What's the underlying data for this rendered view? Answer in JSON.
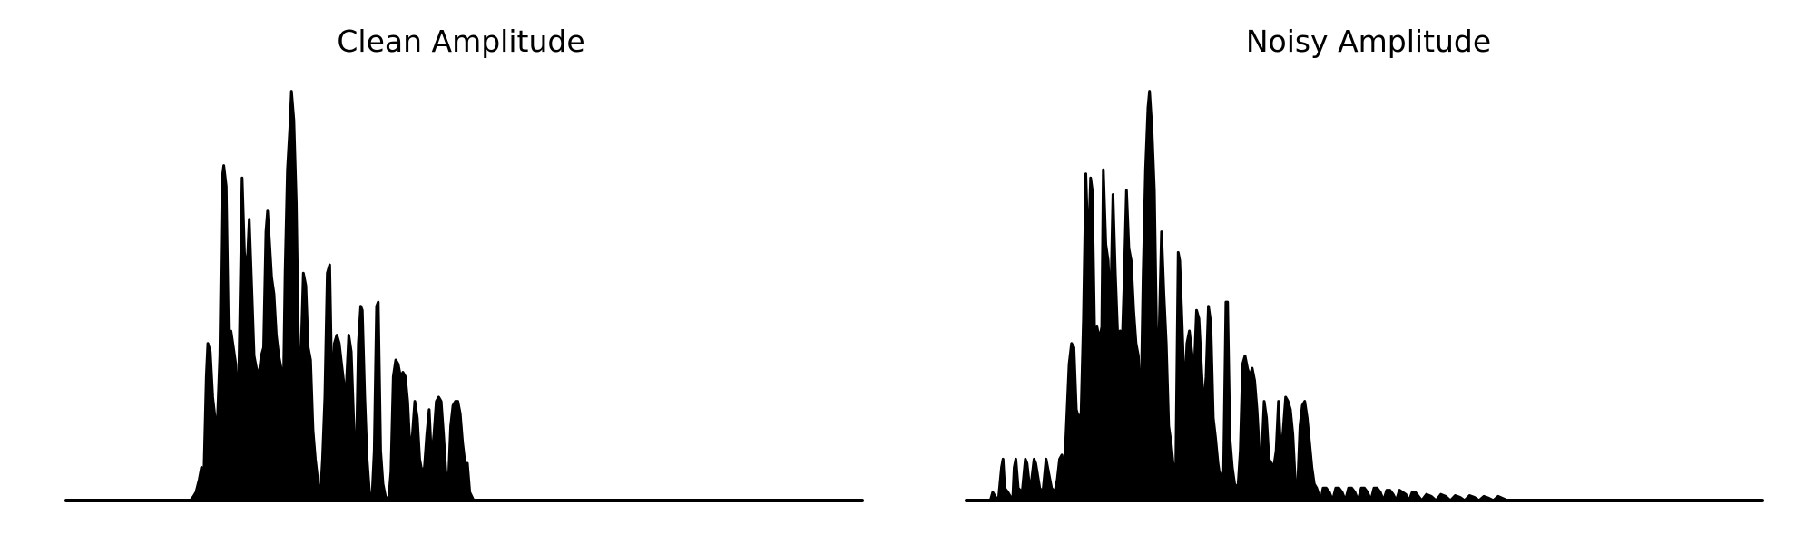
{
  "chart_data": [
    {
      "type": "area",
      "title": "Clean Amplitude",
      "xlabel": "",
      "ylabel": "",
      "axes_visible": false,
      "grid": false,
      "xlim": [
        0,
        1000
      ],
      "ylim": [
        0,
        1.0
      ],
      "color": "#000000",
      "points": [
        [
          0,
          0
        ],
        [
          156,
          0
        ],
        [
          160,
          0.01
        ],
        [
          163,
          0.02
        ],
        [
          167,
          0.05
        ],
        [
          170,
          0.08
        ],
        [
          173,
          0.06
        ],
        [
          176,
          0.3
        ],
        [
          178,
          0.38
        ],
        [
          181,
          0.36
        ],
        [
          184,
          0.25
        ],
        [
          187,
          0.2
        ],
        [
          190,
          0.19
        ],
        [
          193,
          0.35
        ],
        [
          196,
          0.78
        ],
        [
          198,
          0.81
        ],
        [
          201,
          0.76
        ],
        [
          204,
          0.4
        ],
        [
          207,
          0.41
        ],
        [
          210,
          0.37
        ],
        [
          213,
          0.33
        ],
        [
          216,
          0.2
        ],
        [
          219,
          0.55
        ],
        [
          221,
          0.78
        ],
        [
          224,
          0.6
        ],
        [
          227,
          0.55
        ],
        [
          230,
          0.68
        ],
        [
          233,
          0.52
        ],
        [
          236,
          0.35
        ],
        [
          239,
          0.32
        ],
        [
          242,
          0.3
        ],
        [
          245,
          0.35
        ],
        [
          248,
          0.37
        ],
        [
          251,
          0.65
        ],
        [
          253,
          0.7
        ],
        [
          255,
          0.64
        ],
        [
          258,
          0.54
        ],
        [
          261,
          0.5
        ],
        [
          264,
          0.4
        ],
        [
          267,
          0.35
        ],
        [
          270,
          0.32
        ],
        [
          273,
          0.28
        ],
        [
          275,
          0.55
        ],
        [
          278,
          0.8
        ],
        [
          281,
          0.9
        ],
        [
          283,
          0.99
        ],
        [
          286,
          0.92
        ],
        [
          289,
          0.72
        ],
        [
          292,
          0.35
        ],
        [
          295,
          0.35
        ],
        [
          298,
          0.55
        ],
        [
          301,
          0.52
        ],
        [
          304,
          0.37
        ],
        [
          307,
          0.34
        ],
        [
          310,
          0.17
        ],
        [
          313,
          0.1
        ],
        [
          316,
          0.05
        ],
        [
          319,
          0.0
        ],
        [
          322,
          0.1
        ],
        [
          325,
          0.25
        ],
        [
          328,
          0.55
        ],
        [
          331,
          0.57
        ],
        [
          334,
          0.25
        ],
        [
          337,
          0.38
        ],
        [
          340,
          0.4
        ],
        [
          343,
          0.38
        ],
        [
          346,
          0.33
        ],
        [
          349,
          0.28
        ],
        [
          352,
          0.28
        ],
        [
          355,
          0.4
        ],
        [
          358,
          0.36
        ],
        [
          361,
          0.2
        ],
        [
          364,
          0.05
        ],
        [
          367,
          0.38
        ],
        [
          370,
          0.47
        ],
        [
          372,
          0.46
        ],
        [
          375,
          0.25
        ],
        [
          378,
          0.1
        ],
        [
          381,
          0.02
        ],
        [
          384,
          0.0
        ],
        [
          387,
          0.12
        ],
        [
          390,
          0.47
        ],
        [
          392,
          0.48
        ],
        [
          395,
          0.12
        ],
        [
          398,
          0.04
        ],
        [
          401,
          0.01
        ],
        [
          405,
          0.0
        ],
        [
          408,
          0.07
        ],
        [
          411,
          0.3
        ],
        [
          414,
          0.34
        ],
        [
          417,
          0.33
        ],
        [
          420,
          0.3
        ],
        [
          423,
          0.31
        ],
        [
          426,
          0.3
        ],
        [
          429,
          0.24
        ],
        [
          432,
          0.12
        ],
        [
          435,
          0.16
        ],
        [
          438,
          0.24
        ],
        [
          441,
          0.2
        ],
        [
          444,
          0.1
        ],
        [
          447,
          0.07
        ],
        [
          450,
          0.08
        ],
        [
          453,
          0.16
        ],
        [
          456,
          0.22
        ],
        [
          459,
          0.1
        ],
        [
          462,
          0.16
        ],
        [
          465,
          0.24
        ],
        [
          468,
          0.25
        ],
        [
          471,
          0.24
        ],
        [
          474,
          0.16
        ],
        [
          477,
          0.07
        ],
        [
          480,
          0.04
        ],
        [
          483,
          0.18
        ],
        [
          486,
          0.23
        ],
        [
          489,
          0.24
        ],
        [
          492,
          0.24
        ],
        [
          495,
          0.21
        ],
        [
          498,
          0.14
        ],
        [
          501,
          0.09
        ],
        [
          504,
          0.09
        ],
        [
          507,
          0.02
        ],
        [
          512,
          0.0
        ],
        [
          1000,
          0
        ]
      ]
    },
    {
      "type": "area",
      "title": "Noisy Amplitude",
      "xlabel": "",
      "ylabel": "",
      "axes_visible": false,
      "grid": false,
      "xlim": [
        0,
        1000
      ],
      "ylim": [
        0,
        1.0
      ],
      "color": "#000000",
      "points": [
        [
          0,
          0
        ],
        [
          30,
          0
        ],
        [
          33,
          0.02
        ],
        [
          36,
          0.01
        ],
        [
          40,
          0
        ],
        [
          44,
          0.08
        ],
        [
          46,
          0.1
        ],
        [
          48,
          0.03
        ],
        [
          52,
          0.02
        ],
        [
          55,
          0.01
        ],
        [
          58,
          0
        ],
        [
          60,
          0.08
        ],
        [
          62,
          0.1
        ],
        [
          65,
          0.03
        ],
        [
          70,
          0.02
        ],
        [
          74,
          0.1
        ],
        [
          76,
          0.09
        ],
        [
          80,
          0.02
        ],
        [
          85,
          0.1
        ],
        [
          87,
          0.09
        ],
        [
          92,
          0.03
        ],
        [
          96,
          0.02
        ],
        [
          100,
          0.1
        ],
        [
          103,
          0.07
        ],
        [
          107,
          0.03
        ],
        [
          111,
          0.02
        ],
        [
          114,
          0.05
        ],
        [
          117,
          0.1
        ],
        [
          120,
          0.11
        ],
        [
          123,
          0.07
        ],
        [
          126,
          0.2
        ],
        [
          129,
          0.33
        ],
        [
          132,
          0.38
        ],
        [
          135,
          0.37
        ],
        [
          138,
          0.22
        ],
        [
          141,
          0.2
        ],
        [
          144,
          0.21
        ],
        [
          147,
          0.44
        ],
        [
          150,
          0.79
        ],
        [
          153,
          0.6
        ],
        [
          156,
          0.78
        ],
        [
          158,
          0.75
        ],
        [
          161,
          0.4
        ],
        [
          164,
          0.42
        ],
        [
          167,
          0.39
        ],
        [
          170,
          0.42
        ],
        [
          172,
          0.8
        ],
        [
          175,
          0.62
        ],
        [
          178,
          0.58
        ],
        [
          181,
          0.45
        ],
        [
          184,
          0.74
        ],
        [
          187,
          0.55
        ],
        [
          190,
          0.4
        ],
        [
          193,
          0.41
        ],
        [
          196,
          0.4
        ],
        [
          198,
          0.52
        ],
        [
          201,
          0.75
        ],
        [
          204,
          0.61
        ],
        [
          207,
          0.58
        ],
        [
          210,
          0.46
        ],
        [
          213,
          0.38
        ],
        [
          216,
          0.35
        ],
        [
          219,
          0.2
        ],
        [
          222,
          0.55
        ],
        [
          225,
          0.8
        ],
        [
          228,
          0.95
        ],
        [
          230,
          0.99
        ],
        [
          233,
          0.9
        ],
        [
          236,
          0.75
        ],
        [
          239,
          0.38
        ],
        [
          242,
          0.4
        ],
        [
          245,
          0.65
        ],
        [
          248,
          0.5
        ],
        [
          251,
          0.38
        ],
        [
          254,
          0.18
        ],
        [
          257,
          0.14
        ],
        [
          260,
          0.08
        ],
        [
          263,
          0.09
        ],
        [
          266,
          0.6
        ],
        [
          268,
          0.58
        ],
        [
          271,
          0.42
        ],
        [
          274,
          0.25
        ],
        [
          277,
          0.38
        ],
        [
          280,
          0.41
        ],
        [
          283,
          0.36
        ],
        [
          286,
          0.31
        ],
        [
          289,
          0.46
        ],
        [
          292,
          0.44
        ],
        [
          295,
          0.33
        ],
        [
          298,
          0.22
        ],
        [
          301,
          0.3
        ],
        [
          304,
          0.47
        ],
        [
          307,
          0.43
        ],
        [
          310,
          0.2
        ],
        [
          313,
          0.15
        ],
        [
          316,
          0.09
        ],
        [
          319,
          0.05
        ],
        [
          323,
          0.07
        ],
        [
          326,
          0.48
        ],
        [
          328,
          0.48
        ],
        [
          331,
          0.15
        ],
        [
          334,
          0.08
        ],
        [
          337,
          0.04
        ],
        [
          341,
          0.03
        ],
        [
          344,
          0.12
        ],
        [
          347,
          0.33
        ],
        [
          350,
          0.35
        ],
        [
          353,
          0.32
        ],
        [
          356,
          0.3
        ],
        [
          359,
          0.32
        ],
        [
          362,
          0.29
        ],
        [
          365,
          0.22
        ],
        [
          368,
          0.12
        ],
        [
          371,
          0.11
        ],
        [
          374,
          0.24
        ],
        [
          377,
          0.2
        ],
        [
          380,
          0.1
        ],
        [
          383,
          0.09
        ],
        [
          386,
          0.08
        ],
        [
          389,
          0.12
        ],
        [
          392,
          0.24
        ],
        [
          395,
          0.11
        ],
        [
          398,
          0.17
        ],
        [
          401,
          0.25
        ],
        [
          404,
          0.24
        ],
        [
          407,
          0.22
        ],
        [
          410,
          0.16
        ],
        [
          413,
          0.05
        ],
        [
          416,
          0.03
        ],
        [
          419,
          0.18
        ],
        [
          422,
          0.23
        ],
        [
          425,
          0.24
        ],
        [
          428,
          0.2
        ],
        [
          431,
          0.14
        ],
        [
          434,
          0.08
        ],
        [
          437,
          0.04
        ],
        [
          440,
          0.03
        ],
        [
          445,
          0.0
        ],
        [
          448,
          0.03
        ],
        [
          452,
          0.03
        ],
        [
          456,
          0.02
        ],
        [
          460,
          0
        ],
        [
          464,
          0.03
        ],
        [
          468,
          0.03
        ],
        [
          472,
          0.02
        ],
        [
          476,
          0
        ],
        [
          480,
          0.03
        ],
        [
          484,
          0.03
        ],
        [
          488,
          0.02
        ],
        [
          492,
          0
        ],
        [
          496,
          0.03
        ],
        [
          500,
          0.03
        ],
        [
          504,
          0.02
        ],
        [
          508,
          0
        ],
        [
          512,
          0.03
        ],
        [
          516,
          0.03
        ],
        [
          520,
          0.02
        ],
        [
          524,
          0
        ],
        [
          528,
          0.025
        ],
        [
          532,
          0.025
        ],
        [
          536,
          0.015
        ],
        [
          540,
          0
        ],
        [
          544,
          0.025
        ],
        [
          548,
          0.02
        ],
        [
          552,
          0.015
        ],
        [
          556,
          0
        ],
        [
          560,
          0.02
        ],
        [
          564,
          0.02
        ],
        [
          568,
          0.01
        ],
        [
          572,
          0
        ],
        [
          578,
          0.015
        ],
        [
          584,
          0.01
        ],
        [
          590,
          0
        ],
        [
          596,
          0.015
        ],
        [
          602,
          0.01
        ],
        [
          608,
          0
        ],
        [
          614,
          0.012
        ],
        [
          620,
          0.008
        ],
        [
          626,
          0
        ],
        [
          632,
          0.012
        ],
        [
          638,
          0.008
        ],
        [
          644,
          0
        ],
        [
          650,
          0.01
        ],
        [
          656,
          0.006
        ],
        [
          662,
          0
        ],
        [
          668,
          0.01
        ],
        [
          674,
          0.005
        ],
        [
          680,
          0
        ],
        [
          1000,
          0
        ]
      ]
    }
  ]
}
